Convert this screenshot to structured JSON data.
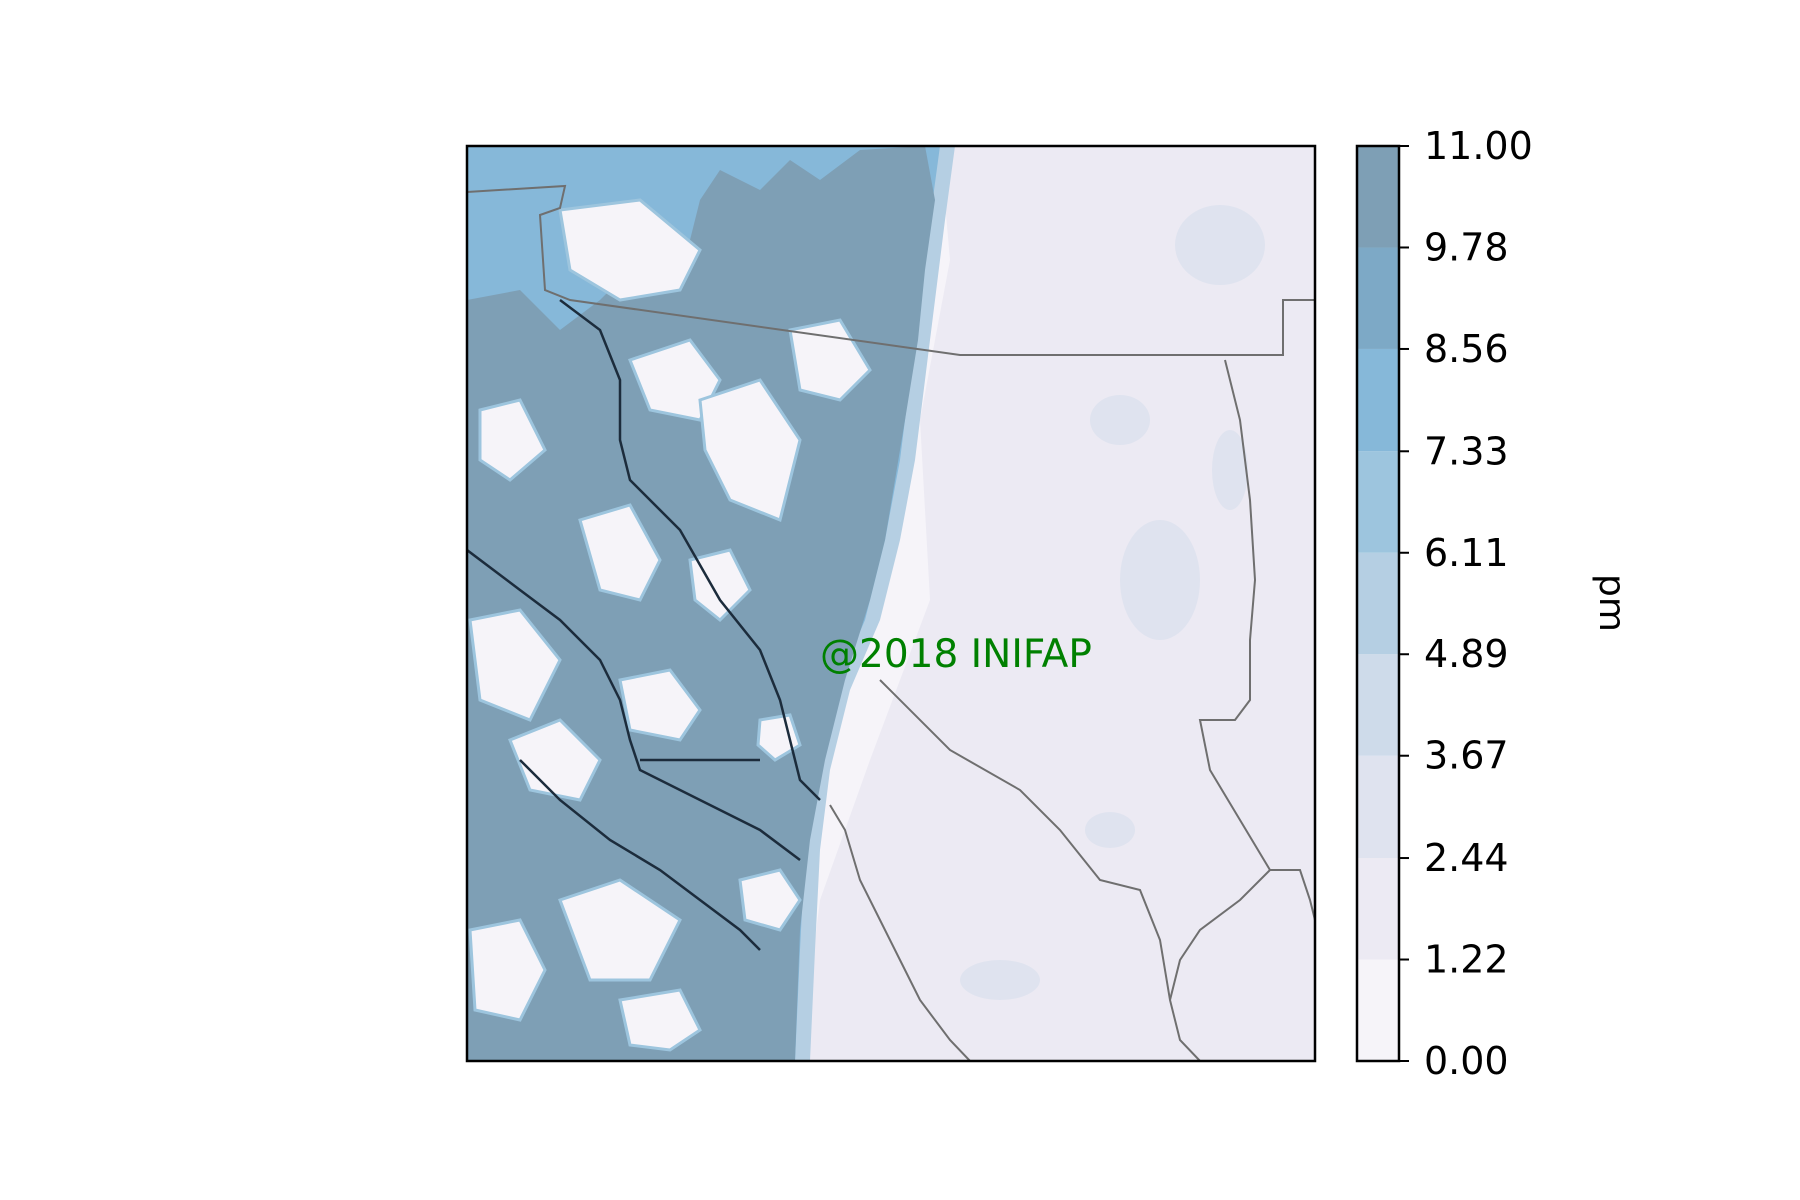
{
  "map": {
    "watermark": "@2018 INIFAP",
    "field_colors": {
      "low": "#f6f4f9",
      "mid": "#dfe3ef",
      "high": "#7e9fb5"
    },
    "border_color": "#6f6f6f",
    "frame_color": "#000000"
  },
  "colorbar": {
    "label": "pm",
    "ticks": [
      "0.00",
      "1.22",
      "2.44",
      "3.67",
      "4.89",
      "6.11",
      "7.33",
      "8.56",
      "9.78",
      "11.00"
    ],
    "levels": [
      0.0,
      1.22,
      2.44,
      3.67,
      4.89,
      6.11,
      7.33,
      8.56,
      9.78,
      11.0
    ],
    "colors": [
      "#f6f4f9",
      "#eceaf3",
      "#dfe3ef",
      "#cedbea",
      "#b5cfe3",
      "#9dc5de",
      "#86b8d9",
      "#7da9c6",
      "#7e9fb5"
    ]
  }
}
